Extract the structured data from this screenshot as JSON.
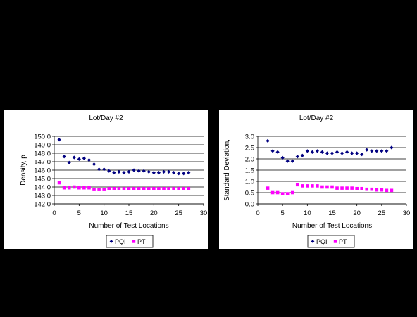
{
  "colors": {
    "background": "#000000",
    "panel": "#ffffff",
    "pqi": "#000080",
    "pt": "#ff00ff",
    "gridline": "#000000"
  },
  "chart_data": [
    {
      "type": "scatter",
      "title": "Lot/Day #2",
      "xlabel": "Number of Test Locations",
      "ylabel": "Density, p",
      "xlim": [
        0,
        30
      ],
      "ylim": [
        142.0,
        150.0
      ],
      "x_ticks": [
        0,
        5,
        10,
        15,
        20,
        25,
        30
      ],
      "y_ticks": [
        142.0,
        143.0,
        144.0,
        145.0,
        146.0,
        147.0,
        148.0,
        149.0,
        150.0
      ],
      "y_tick_labels": [
        "142.0",
        "143.0",
        "144.0",
        "145.0",
        "146.0",
        "147.0",
        "148.0",
        "149.0",
        "150.0"
      ],
      "grid": "horizontal",
      "legend": "bottom",
      "series": [
        {
          "name": "PQI",
          "marker": "diamond",
          "color": "#000080",
          "x": [
            1,
            2,
            3,
            4,
            5,
            6,
            7,
            8,
            9,
            10,
            11,
            12,
            13,
            14,
            15,
            16,
            17,
            18,
            19,
            20,
            21,
            22,
            23,
            24,
            25,
            26,
            27
          ],
          "y": [
            149.6,
            147.6,
            146.9,
            147.5,
            147.3,
            147.4,
            147.2,
            146.7,
            146.1,
            146.1,
            145.9,
            145.7,
            145.8,
            145.7,
            145.8,
            146.0,
            145.9,
            145.9,
            145.8,
            145.7,
            145.7,
            145.8,
            145.8,
            145.7,
            145.6,
            145.6,
            145.7
          ]
        },
        {
          "name": "PT",
          "marker": "square",
          "color": "#ff00ff",
          "x": [
            1,
            2,
            3,
            4,
            5,
            6,
            7,
            8,
            9,
            10,
            11,
            12,
            13,
            14,
            15,
            16,
            17,
            18,
            19,
            20,
            21,
            22,
            23,
            24,
            25,
            26,
            27
          ],
          "y": [
            144.5,
            143.9,
            143.9,
            144.0,
            143.9,
            143.9,
            143.9,
            143.7,
            143.7,
            143.7,
            143.8,
            143.8,
            143.8,
            143.8,
            143.8,
            143.8,
            143.8,
            143.8,
            143.8,
            143.8,
            143.8,
            143.8,
            143.8,
            143.8,
            143.8,
            143.8,
            143.8
          ]
        }
      ]
    },
    {
      "type": "scatter",
      "title": "Lot/Day #2",
      "xlabel": "Number of Test Locations",
      "ylabel": "Standard Deviation,",
      "xlim": [
        0,
        30
      ],
      "ylim": [
        0.0,
        3.0
      ],
      "x_ticks": [
        0,
        5,
        10,
        15,
        20,
        25,
        30
      ],
      "y_ticks": [
        0.0,
        0.5,
        1.0,
        1.5,
        2.0,
        2.5,
        3.0
      ],
      "y_tick_labels": [
        "0.0",
        "0.5",
        "1.0",
        "1.5",
        "2.0",
        "2.5",
        "3.0"
      ],
      "grid": "horizontal",
      "legend": "bottom",
      "series": [
        {
          "name": "PQI",
          "marker": "diamond",
          "color": "#000080",
          "x": [
            2,
            3,
            4,
            5,
            6,
            7,
            8,
            9,
            10,
            11,
            12,
            13,
            14,
            15,
            16,
            17,
            18,
            19,
            20,
            21,
            22,
            23,
            24,
            25,
            26,
            27
          ],
          "y": [
            2.8,
            2.35,
            2.3,
            2.05,
            1.9,
            1.9,
            2.1,
            2.15,
            2.35,
            2.3,
            2.35,
            2.3,
            2.25,
            2.25,
            2.3,
            2.25,
            2.3,
            2.25,
            2.25,
            2.2,
            2.4,
            2.35,
            2.35,
            2.35,
            2.35,
            2.5
          ]
        },
        {
          "name": "PT",
          "marker": "square",
          "color": "#ff00ff",
          "x": [
            2,
            3,
            4,
            5,
            6,
            7,
            8,
            9,
            10,
            11,
            12,
            13,
            14,
            15,
            16,
            17,
            18,
            19,
            20,
            21,
            22,
            23,
            24,
            25,
            26,
            27
          ],
          "y": [
            0.7,
            0.5,
            0.5,
            0.45,
            0.45,
            0.5,
            0.85,
            0.8,
            0.8,
            0.8,
            0.8,
            0.75,
            0.75,
            0.75,
            0.7,
            0.7,
            0.7,
            0.7,
            0.68,
            0.68,
            0.65,
            0.65,
            0.62,
            0.62,
            0.6,
            0.6
          ]
        }
      ]
    }
  ]
}
